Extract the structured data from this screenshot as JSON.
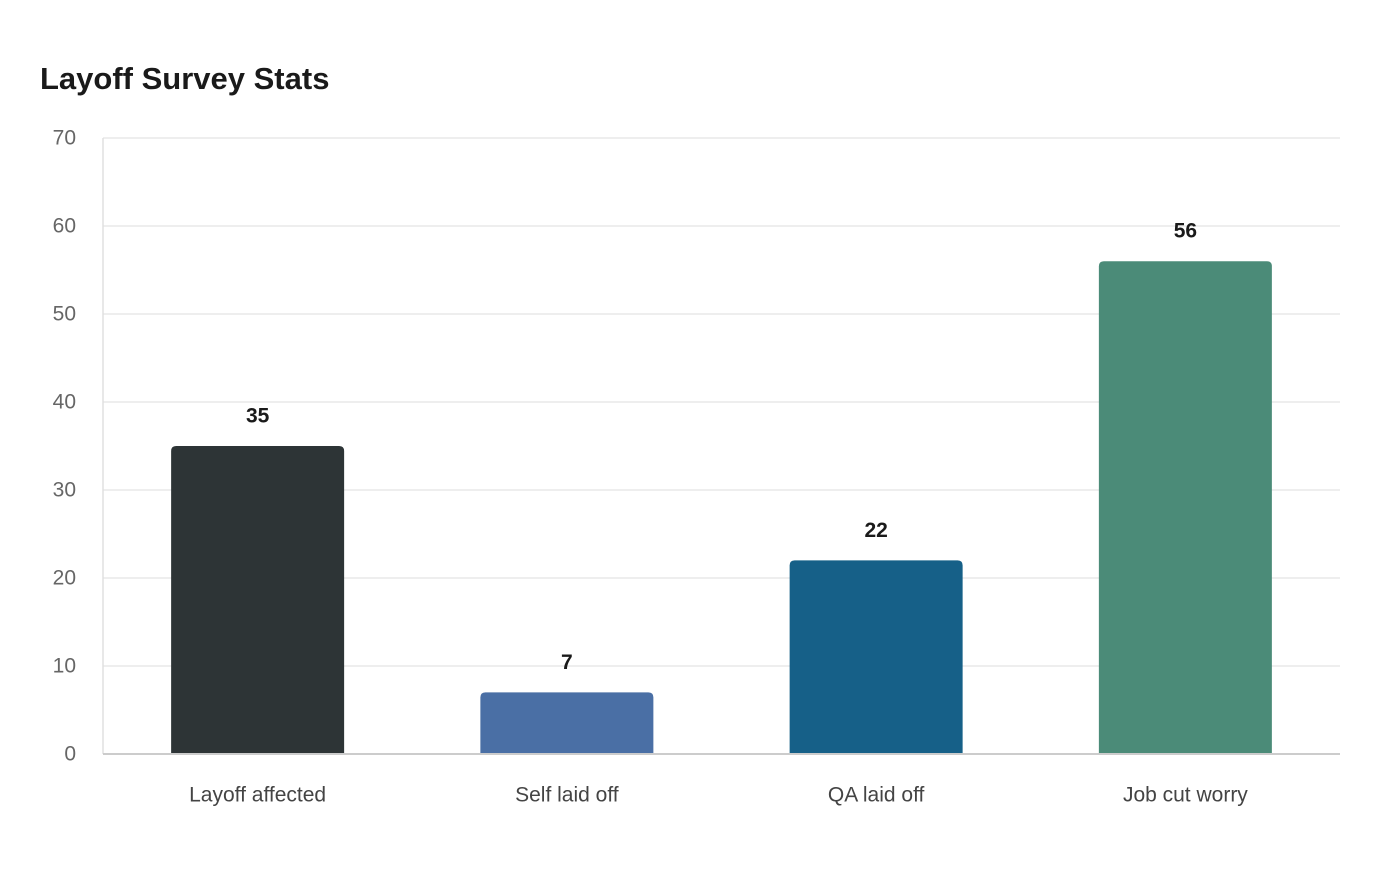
{
  "chart_data": {
    "type": "bar",
    "title": "Layoff Survey Stats",
    "xlabel": "",
    "ylabel": "",
    "categories": [
      "Layoff affected",
      "Self laid off",
      "QA laid off",
      "Job cut worry"
    ],
    "values": [
      35,
      7,
      22,
      56
    ],
    "colors": [
      "#2d3436",
      "#4a6fa5",
      "#166088",
      "#4b8b78"
    ],
    "ylim": [
      0,
      70
    ],
    "yticks": [
      0,
      10,
      20,
      30,
      40,
      50,
      60,
      70
    ],
    "grid": true,
    "legend": false,
    "data_labels": true
  }
}
